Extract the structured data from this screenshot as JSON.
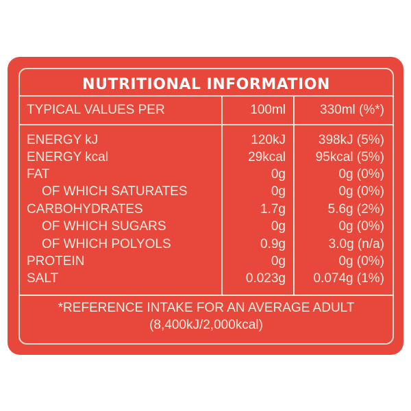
{
  "title": "NUTRITIONAL INFORMATION",
  "header": {
    "label": "TYPICAL VALUES PER",
    "col1": "100ml",
    "col2": "330ml (%*)"
  },
  "rows": [
    {
      "label": "ENERGY kJ",
      "v100": "120kJ",
      "v330": "398kJ (5%)"
    },
    {
      "label": "ENERGY kcal",
      "v100": "29kcal",
      "v330": "95kcal (5%)"
    },
    {
      "label": "FAT",
      "v100": "0g",
      "v330": "0g (0%)"
    },
    {
      "label": "OF WHICH SATURATES",
      "v100": "0g",
      "v330": "0g (0%)"
    },
    {
      "label": "CARBOHYDRATES",
      "v100": "1.7g",
      "v330": "5.6g (2%)"
    },
    {
      "label": "OF WHICH SUGARS",
      "v100": "0g",
      "v330": "0g (0%)"
    },
    {
      "label": "OF WHICH POLYOLS",
      "v100": "0.9g",
      "v330": "3.0g (n/a)"
    },
    {
      "label": "PROTEIN",
      "v100": "0g",
      "v330": "0g (0%)"
    },
    {
      "label": "SALT",
      "v100": "0.023g",
      "v330": "0.074g (1%)"
    }
  ],
  "footer": {
    "line1": "*REFERENCE INTAKE FOR AN AVERAGE ADULT",
    "line2": "(8,400kJ/2,000kcal)"
  },
  "colors": {
    "panel": "#e8473b",
    "text": "#f7ece0",
    "rule": "#f4e3d3"
  }
}
